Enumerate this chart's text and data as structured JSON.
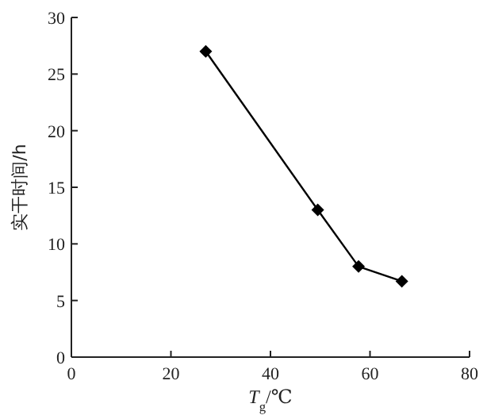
{
  "chart_data": {
    "type": "line",
    "xlabel": "*T*$_{g}$/℃",
    "ylabel": "实干时间/h",
    "x": [
      27,
      49.5,
      57.7,
      66.4
    ],
    "values": [
      27,
      13,
      8,
      6.7
    ],
    "color": "#000000",
    "marker": "diamond",
    "line_style": "solid",
    "xlim": [
      0,
      80
    ],
    "xticks": [
      0,
      20,
      40,
      60,
      80
    ],
    "ylim": [
      0,
      30
    ],
    "yticks": [
      0,
      5,
      10,
      15,
      20,
      25,
      30
    ]
  }
}
